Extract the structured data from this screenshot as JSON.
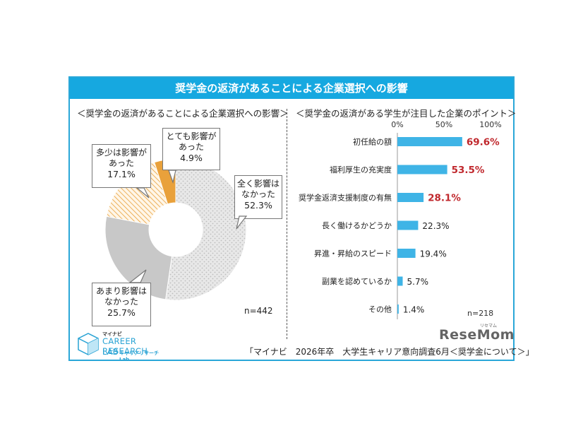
{
  "banner": {
    "title": "奨学金の返済があることによる企業選択への影響"
  },
  "left": {
    "subtitle": "＜奨学金の返済があることによる企業選択への影響＞",
    "n": "n=442",
    "callouts": [
      {
        "label": "とても影響が\nあった",
        "pct": "4.9%"
      },
      {
        "label": "多少は影響が\nあった",
        "pct": "17.1%"
      },
      {
        "label": "全く影響は\nなかった",
        "pct": "52.3%"
      },
      {
        "label": "あまり影響は\nなかった",
        "pct": "25.7%"
      }
    ]
  },
  "right": {
    "subtitle": "＜奨学金の返済がある学生が注目した企業のポイント＞",
    "n": "n=218"
  },
  "source": "「マイナビ　2026年卒　大学生キャリア意向調査6月＜奨学金について＞」",
  "logo": {
    "line1": "マイナビ",
    "line2": "CAREER RESEARCH",
    "line3": "LAB",
    "line4": "キャリアリサーチLab"
  },
  "watermark": {
    "main": "ReseMom",
    "small": "リセマム"
  },
  "colors": {
    "accent": "#16a8e0",
    "bar": "#3fb4e6",
    "highlight": "#c0282d",
    "orange": "#e9a13b",
    "gray": "#c8c8c8"
  },
  "chart_data": [
    {
      "type": "pie",
      "categories": [
        "全く影響はなかった",
        "あまり影響はなかった",
        "多少は影響があった",
        "とても影響があった"
      ],
      "values": [
        52.3,
        25.7,
        17.1,
        4.9
      ],
      "title": "＜奨学金の返済があることによる企業選択への影響＞"
    },
    {
      "type": "bar",
      "orientation": "horizontal",
      "categories": [
        "初任給の額",
        "福利厚生の充実度",
        "奨学金返済支援制度の有無",
        "長く働けるかどうか",
        "昇進・昇給のスピード",
        "副業を認めているか",
        "その他"
      ],
      "values": [
        69.6,
        53.5,
        28.1,
        22.3,
        19.4,
        5.7,
        1.4
      ],
      "value_labels": [
        "69.6%",
        "53.5%",
        "28.1%",
        "22.3%",
        "19.4%",
        "5.7%",
        "1.4%"
      ],
      "highlight": [
        true,
        true,
        true,
        false,
        false,
        false,
        false
      ],
      "xlim": [
        0,
        100
      ],
      "xticks": [
        "0%",
        "50%",
        "100%"
      ],
      "title": "＜奨学金の返済がある学生が注目した企業のポイント＞"
    }
  ]
}
